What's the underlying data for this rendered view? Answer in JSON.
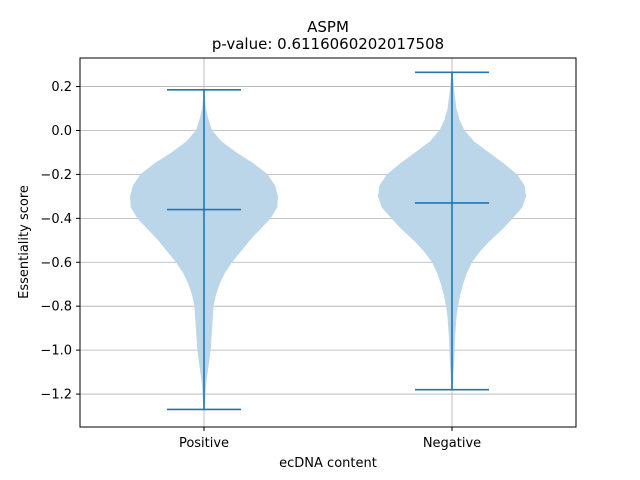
{
  "chart_data": {
    "type": "violin",
    "title": "ASPM",
    "subtitle": "p-value: 0.6116060202017508",
    "xlabel": "ecDNA content",
    "ylabel": "Essentiality score",
    "categories": [
      "Positive",
      "Negative"
    ],
    "ylim": [
      -1.35,
      0.33
    ],
    "yticks": [
      0.2,
      0.0,
      -0.2,
      -0.4,
      -0.6,
      -0.8,
      -1.0,
      -1.2
    ],
    "ytick_labels": [
      "0.2",
      "0.0",
      "−0.2",
      "−0.4",
      "−0.6",
      "−0.8",
      "−1.0",
      "−1.2"
    ],
    "grid": true,
    "colors": {
      "violin_fill": "#bcd6e9",
      "line": "#1f77b4",
      "grid": "#b0b0b0"
    },
    "violins": [
      {
        "name": "Positive",
        "min": -1.27,
        "max": 0.185,
        "mean": -0.36,
        "density": [
          [
            0.185,
            0.01
          ],
          [
            0.15,
            0.01
          ],
          [
            0.1,
            0.025
          ],
          [
            0.05,
            0.06
          ],
          [
            0.0,
            0.11
          ],
          [
            -0.05,
            0.24
          ],
          [
            -0.1,
            0.44
          ],
          [
            -0.15,
            0.67
          ],
          [
            -0.2,
            0.86
          ],
          [
            -0.25,
            0.96
          ],
          [
            -0.3,
            1.0
          ],
          [
            -0.35,
            0.99
          ],
          [
            -0.4,
            0.9
          ],
          [
            -0.45,
            0.76
          ],
          [
            -0.5,
            0.62
          ],
          [
            -0.55,
            0.5
          ],
          [
            -0.6,
            0.38
          ],
          [
            -0.65,
            0.28
          ],
          [
            -0.7,
            0.21
          ],
          [
            -0.75,
            0.16
          ],
          [
            -0.8,
            0.13
          ],
          [
            -0.85,
            0.12
          ],
          [
            -0.9,
            0.11
          ],
          [
            -0.95,
            0.1
          ],
          [
            -1.0,
            0.09
          ],
          [
            -1.05,
            0.07
          ],
          [
            -1.1,
            0.05
          ],
          [
            -1.15,
            0.03
          ],
          [
            -1.2,
            0.02
          ],
          [
            -1.27,
            0.01
          ]
        ]
      },
      {
        "name": "Negative",
        "min": -1.18,
        "max": 0.265,
        "mean": -0.33,
        "density": [
          [
            0.265,
            0.01
          ],
          [
            0.22,
            0.02
          ],
          [
            0.18,
            0.03
          ],
          [
            0.1,
            0.06
          ],
          [
            0.05,
            0.1
          ],
          [
            0.0,
            0.17
          ],
          [
            -0.05,
            0.3
          ],
          [
            -0.1,
            0.5
          ],
          [
            -0.15,
            0.7
          ],
          [
            -0.2,
            0.88
          ],
          [
            -0.25,
            0.98
          ],
          [
            -0.3,
            1.0
          ],
          [
            -0.35,
            0.95
          ],
          [
            -0.4,
            0.82
          ],
          [
            -0.45,
            0.68
          ],
          [
            -0.5,
            0.52
          ],
          [
            -0.55,
            0.38
          ],
          [
            -0.6,
            0.27
          ],
          [
            -0.65,
            0.2
          ],
          [
            -0.7,
            0.15
          ],
          [
            -0.75,
            0.11
          ],
          [
            -0.8,
            0.08
          ],
          [
            -0.85,
            0.06
          ],
          [
            -0.9,
            0.05
          ],
          [
            -0.95,
            0.04
          ],
          [
            -1.0,
            0.035
          ],
          [
            -1.05,
            0.03
          ],
          [
            -1.1,
            0.02
          ],
          [
            -1.18,
            0.01
          ]
        ]
      }
    ]
  }
}
